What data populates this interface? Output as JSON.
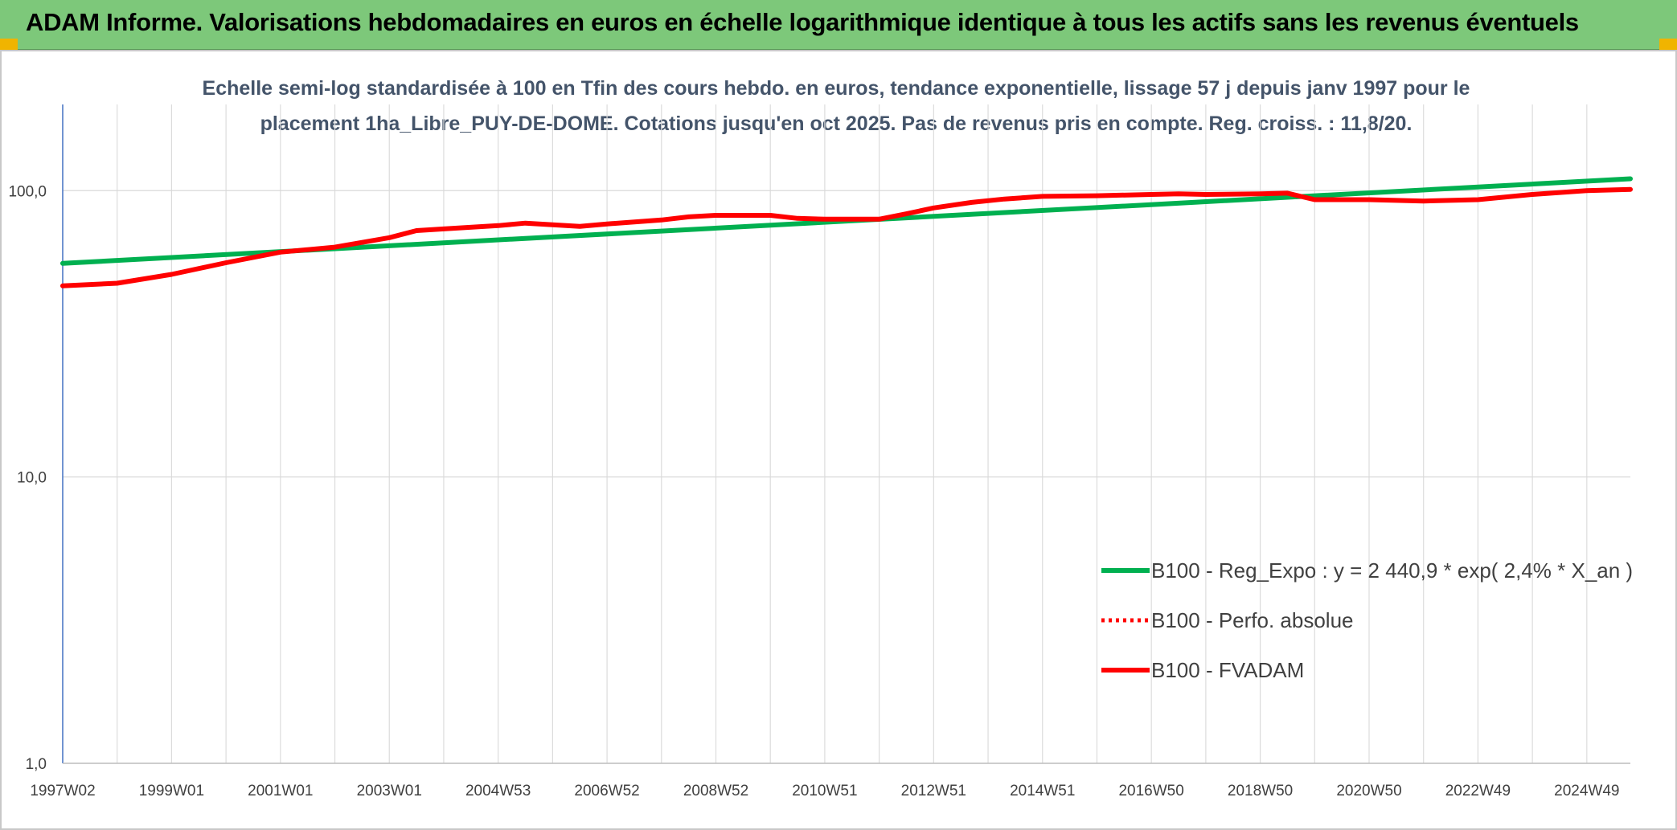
{
  "header": {
    "title": "ADAM Informe. Valorisations hebdomadaires en euros en échelle logarithmique identique à tous les actifs sans les revenus éventuels",
    "accent_color": "#7dc87a"
  },
  "chart_data": {
    "type": "line",
    "title": "Echelle semi-log standardisée à 100 en Tfin des cours hebdo. en euros, tendance exponentielle, lissage 57 j depuis janv 1997 pour le placement 1ha_Libre_PUY-DE-DOME. Cotations jusqu'en oct 2025. Pas de revenus pris en compte. Reg. croiss. : 11,8/20.",
    "title_lines": [
      "Echelle semi-log standardisée à 100 en Tfin des cours hebdo. en euros, tendance exponentielle, lissage 57 j depuis janv 1997 pour le",
      "placement 1ha_Libre_PUY-DE-DOME. Cotations jusqu'en oct 2025. Pas de revenus pris en compte. Reg. croiss. : 11,8/20."
    ],
    "y_scale": "log",
    "ylim": [
      1,
      200
    ],
    "y_ticks": [
      {
        "value": 1,
        "label": "1,0"
      },
      {
        "value": 10,
        "label": "10,0"
      },
      {
        "value": 100,
        "label": "100,0"
      }
    ],
    "xlim": [
      1997.0,
      2025.8
    ],
    "x_ticks": [
      {
        "x": 1997.0,
        "label": "1997W02"
      },
      {
        "x": 1999.0,
        "label": "1999W01"
      },
      {
        "x": 2001.0,
        "label": "2001W01"
      },
      {
        "x": 2003.0,
        "label": "2003W01"
      },
      {
        "x": 2005.0,
        "label": "2004W53"
      },
      {
        "x": 2007.0,
        "label": "2006W52"
      },
      {
        "x": 2009.0,
        "label": "2008W52"
      },
      {
        "x": 2011.0,
        "label": "2010W51"
      },
      {
        "x": 2013.0,
        "label": "2012W51"
      },
      {
        "x": 2015.0,
        "label": "2014W51"
      },
      {
        "x": 2017.0,
        "label": "2016W50"
      },
      {
        "x": 2019.0,
        "label": "2018W50"
      },
      {
        "x": 2021.0,
        "label": "2020W50"
      },
      {
        "x": 2023.0,
        "label": "2022W49"
      },
      {
        "x": 2025.0,
        "label": "2024W49"
      }
    ],
    "grid": true,
    "legend_position": "bottom-right",
    "series": [
      {
        "name": "B100 - Reg_Expo : y = 2 440,9 * exp( 2,4% *  X_an )",
        "color": "#00b050",
        "style": "solid",
        "x": [
          1997.0,
          2025.8
        ],
        "y": [
          55.7,
          110.0
        ]
      },
      {
        "name": "B100 - Perfo. absolue",
        "color": "#ff0000",
        "style": "dotted",
        "x": [],
        "y": []
      },
      {
        "name": "B100 - FVADAM",
        "color": "#ff0000",
        "style": "solid",
        "x": [
          1997.0,
          1998.0,
          1999.0,
          2000.0,
          2001.0,
          2002.0,
          2003.0,
          2003.5,
          2004.0,
          2005.0,
          2005.5,
          2006.0,
          2006.5,
          2007.0,
          2008.0,
          2008.5,
          2009.0,
          2010.0,
          2010.5,
          2011.0,
          2012.0,
          2012.5,
          2013.0,
          2013.7,
          2014.3,
          2015.0,
          2016.0,
          2017.0,
          2017.5,
          2018.0,
          2019.0,
          2019.5,
          2020.0,
          2021.0,
          2022.0,
          2023.0,
          2024.0,
          2025.0,
          2025.8
        ],
        "y": [
          46.5,
          47.5,
          51.0,
          56.0,
          61.0,
          63.5,
          68.5,
          72.5,
          73.5,
          75.5,
          77.0,
          76.0,
          75.0,
          76.5,
          79.0,
          81.0,
          82.0,
          82.0,
          80.0,
          79.5,
          79.5,
          83.0,
          87.0,
          91.0,
          93.5,
          95.5,
          96.0,
          97.0,
          97.5,
          97.0,
          97.5,
          98.0,
          93.0,
          93.0,
          92.0,
          93.0,
          97.0,
          100.0,
          101.0
        ]
      }
    ]
  }
}
